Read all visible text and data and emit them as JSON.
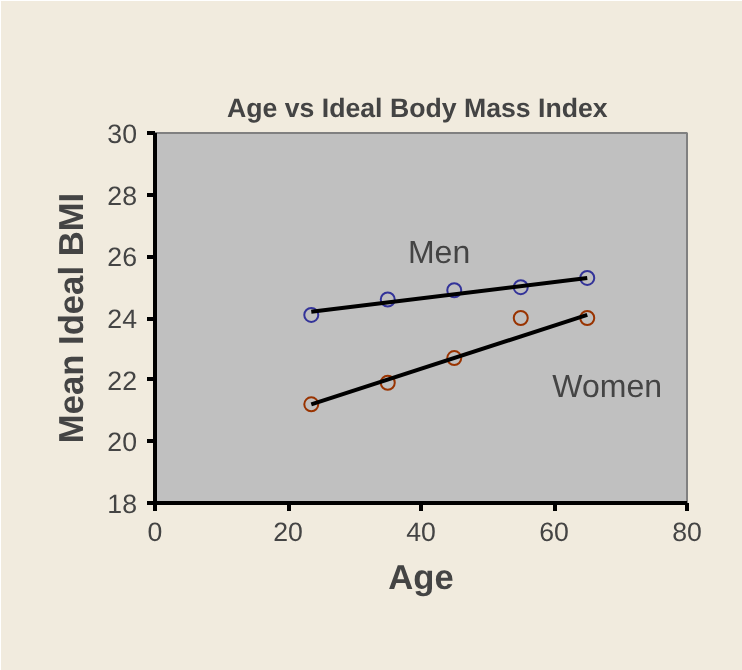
{
  "chart_data": {
    "type": "scatter",
    "title": "Age vs  Ideal Body Mass Index",
    "xlabel": "Age",
    "ylabel": "Mean Ideal BMI",
    "xlim": [
      0,
      80
    ],
    "xticks": [
      0,
      20,
      40,
      60,
      80
    ],
    "ylim": [
      18,
      30
    ],
    "yticks": [
      18,
      20,
      22,
      24,
      26,
      28,
      30
    ],
    "grid": false,
    "series": [
      {
        "marker": "circle",
        "color": "#333399",
        "x": [
          23.5,
          35,
          45,
          55,
          65
        ],
        "values": [
          24.1,
          24.6,
          24.9,
          25.0,
          25.3
        ]
      },
      {
        "marker": "circle",
        "color": "#993300",
        "x": [
          23.5,
          35,
          45,
          55,
          65
        ],
        "values": [
          21.2,
          21.9,
          22.7,
          24.0,
          24.0
        ]
      },
      {
        "type": "line",
        "color": "#000000",
        "x": [
          23.5,
          65
        ],
        "values": [
          24.2,
          25.3
        ]
      },
      {
        "type": "line",
        "color": "#000000",
        "x": [
          23.5,
          65
        ],
        "values": [
          21.2,
          24.1
        ]
      }
    ],
    "annotations": [
      "Men",
      "Women"
    ]
  }
}
